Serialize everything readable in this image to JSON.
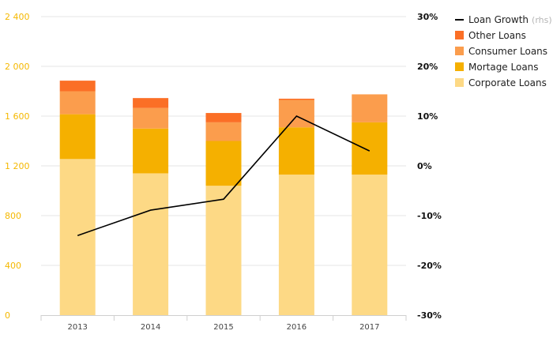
{
  "chart_data": {
    "type": "bar",
    "stacked": true,
    "categories": [
      "2013",
      "2014",
      "2015",
      "2016",
      "2017"
    ],
    "series": [
      {
        "name": "Corporate Loans",
        "color": "#fdd985",
        "values": [
          1255,
          1140,
          1040,
          1130,
          1130
        ]
      },
      {
        "name": "Mortage Loans",
        "color": "#f5b000",
        "values": [
          360,
          360,
          360,
          380,
          420
        ]
      },
      {
        "name": "Consumer Loans",
        "color": "#fb9d4d",
        "values": [
          185,
          165,
          150,
          220,
          225
        ]
      },
      {
        "name": "Other Loans",
        "color": "#fb6f26",
        "values": [
          85,
          80,
          75,
          10,
          0
        ]
      }
    ],
    "line_series": {
      "name": "Loan Growth",
      "suffix": "(rhs)",
      "color": "#000000",
      "values": [
        -14,
        -8.9,
        -6.7,
        10,
        3
      ]
    },
    "y_left": {
      "ylim": [
        0,
        2400
      ],
      "ticks": [
        0,
        400,
        800,
        1200,
        1600,
        2000,
        2400
      ],
      "tick_labels": [
        "0",
        "400",
        "800",
        "1 200",
        "1 600",
        "2 000",
        "2 400"
      ]
    },
    "y_right": {
      "ylim": [
        -30,
        30
      ],
      "ticks": [
        -30,
        -20,
        -10,
        0,
        10,
        20,
        30
      ],
      "tick_labels": [
        "-30%",
        "-20%",
        "-10%",
        "0%",
        "10%",
        "20%",
        "30%"
      ]
    },
    "grid": true,
    "legend_position": "top-right"
  }
}
